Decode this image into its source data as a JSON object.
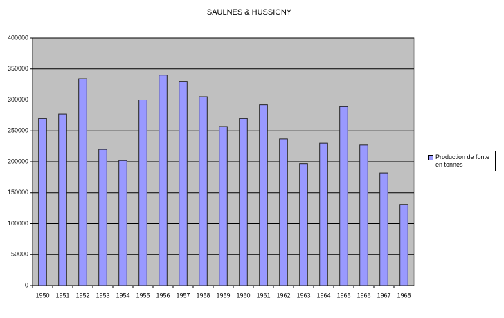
{
  "chart_data": {
    "type": "bar",
    "title": "SAULNES & HUSSIGNY",
    "categories": [
      "1950",
      "1951",
      "1952",
      "1953",
      "1954",
      "1955",
      "1956",
      "1957",
      "1958",
      "1959",
      "1960",
      "1961",
      "1962",
      "1963",
      "1964",
      "1965",
      "1966",
      "1967",
      "1968"
    ],
    "series": [
      {
        "name": "Production de fonte en tonnes",
        "color": "#9999ff",
        "values": [
          270000,
          277000,
          334000,
          220000,
          202000,
          300000,
          340000,
          330000,
          305000,
          257000,
          270000,
          292000,
          237000,
          197000,
          230000,
          289000,
          227000,
          182000,
          131000
        ]
      }
    ],
    "ylim": [
      0,
      400000
    ],
    "yticks": [
      0,
      50000,
      100000,
      150000,
      200000,
      250000,
      300000,
      350000,
      400000
    ],
    "grid": true,
    "legend": "right"
  }
}
